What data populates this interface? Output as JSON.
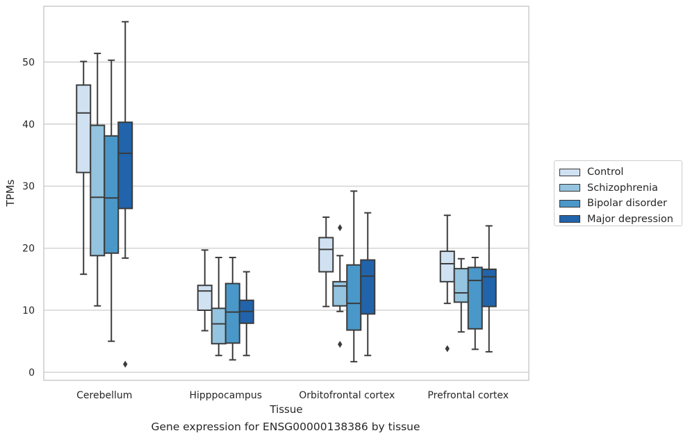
{
  "chart_data": {
    "type": "box",
    "xlabel": "Tissue",
    "ylabel": "TPMs",
    "caption": "Gene expression for ENSG00000138386 by tissue",
    "ylim": [
      -1.3,
      59
    ],
    "yticks": [
      0,
      10,
      20,
      30,
      40,
      50
    ],
    "grid": "horizontal",
    "legend_position": "right",
    "categories": [
      "Cerebellum",
      "Hipppocampus",
      "Orbitofrontal cortex",
      "Prefrontal cortex"
    ],
    "series": [
      {
        "name": "Control",
        "color": "#d0e1f2",
        "boxes": [
          {
            "whisker_low": 15.8,
            "q1": 32.2,
            "median": 41.8,
            "q3": 46.3,
            "whisker_high": 50.1,
            "outliers": []
          },
          {
            "whisker_low": 6.7,
            "q1": 10.0,
            "median": 13.1,
            "q3": 14.0,
            "whisker_high": 19.7,
            "outliers": []
          },
          {
            "whisker_low": 10.6,
            "q1": 16.2,
            "median": 19.8,
            "q3": 21.7,
            "whisker_high": 25.0,
            "outliers": []
          },
          {
            "whisker_low": 11.1,
            "q1": 14.6,
            "median": 17.5,
            "q3": 19.5,
            "whisker_high": 25.3,
            "outliers": [
              3.8
            ]
          }
        ]
      },
      {
        "name": "Schizophrenia",
        "color": "#94c4df",
        "boxes": [
          {
            "whisker_low": 10.7,
            "q1": 18.8,
            "median": 28.2,
            "q3": 39.8,
            "whisker_high": 51.4,
            "outliers": []
          },
          {
            "whisker_low": 2.7,
            "q1": 4.6,
            "median": 7.8,
            "q3": 10.3,
            "whisker_high": 18.5,
            "outliers": []
          },
          {
            "whisker_low": 9.8,
            "q1": 10.7,
            "median": 13.9,
            "q3": 14.6,
            "whisker_high": 18.8,
            "outliers": [
              23.3,
              4.5
            ]
          },
          {
            "whisker_low": 6.5,
            "q1": 11.3,
            "median": 12.8,
            "q3": 16.7,
            "whisker_high": 18.3,
            "outliers": []
          }
        ]
      },
      {
        "name": "Bipolar disorder",
        "color": "#4a98c9",
        "boxes": [
          {
            "whisker_low": 5.0,
            "q1": 19.2,
            "median": 28.1,
            "q3": 38.1,
            "whisker_high": 50.3,
            "outliers": []
          },
          {
            "whisker_low": 2.0,
            "q1": 4.7,
            "median": 9.7,
            "q3": 14.3,
            "whisker_high": 18.5,
            "outliers": []
          },
          {
            "whisker_low": 1.7,
            "q1": 6.8,
            "median": 11.1,
            "q3": 17.3,
            "whisker_high": 29.2,
            "outliers": []
          },
          {
            "whisker_low": 3.7,
            "q1": 7.0,
            "median": 14.8,
            "q3": 16.9,
            "whisker_high": 18.5,
            "outliers": []
          }
        ]
      },
      {
        "name": "Major depression",
        "color": "#2164ab",
        "boxes": [
          {
            "whisker_low": 18.4,
            "q1": 26.4,
            "median": 35.3,
            "q3": 40.3,
            "whisker_high": 56.5,
            "outliers": [
              1.3
            ]
          },
          {
            "whisker_low": 2.7,
            "q1": 7.9,
            "median": 9.8,
            "q3": 11.6,
            "whisker_high": 16.2,
            "outliers": []
          },
          {
            "whisker_low": 2.7,
            "q1": 9.4,
            "median": 15.5,
            "q3": 18.1,
            "whisker_high": 25.7,
            "outliers": []
          },
          {
            "whisker_low": 3.3,
            "q1": 10.6,
            "median": 15.4,
            "q3": 16.6,
            "whisker_high": 23.6,
            "outliers": []
          }
        ]
      }
    ]
  }
}
